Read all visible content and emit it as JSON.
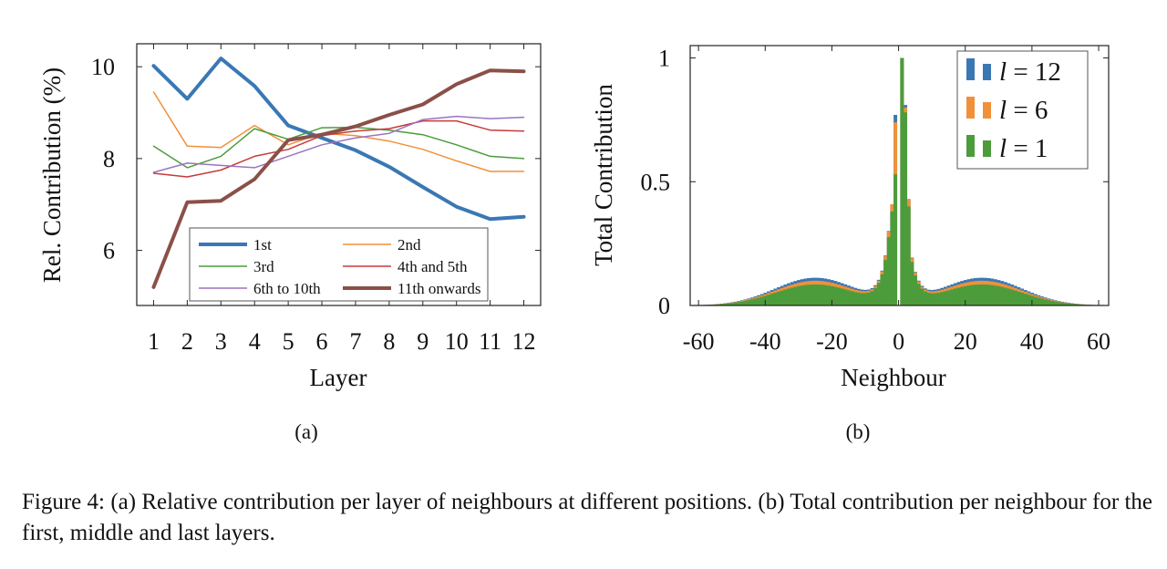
{
  "caption": {
    "label": "Figure 4:",
    "text": "(a) Relative contribution per layer of neighbours at different positions. (b) Total contribution per neighbour for the first, middle and last layers."
  },
  "chart_data": [
    {
      "type": "line",
      "panel_label": "(a)",
      "xlabel": "Layer",
      "ylabel": "Rel. Contribution (%)",
      "x": [
        1,
        2,
        3,
        4,
        5,
        6,
        7,
        8,
        9,
        10,
        11,
        12
      ],
      "xlim": [
        0.5,
        12.5
      ],
      "ylim": [
        4.8,
        10.5
      ],
      "yticks": [
        6,
        8,
        10
      ],
      "grid": false,
      "legend_position": "bottom, inside plot, two columns",
      "series": [
        {
          "name": "1st",
          "color": "#3a78b4",
          "width": 4,
          "values": [
            10.02,
            9.3,
            10.18,
            9.58,
            8.72,
            8.45,
            8.18,
            7.82,
            7.38,
            6.95,
            6.68,
            6.73
          ]
        },
        {
          "name": "2nd",
          "color": "#f0913a",
          "width": 1.5,
          "values": [
            9.45,
            8.27,
            8.24,
            8.72,
            8.3,
            8.55,
            8.5,
            8.38,
            8.2,
            7.95,
            7.72,
            7.72
          ]
        },
        {
          "name": "3rd",
          "color": "#4c9c3c",
          "width": 1.5,
          "values": [
            8.27,
            7.8,
            8.05,
            8.65,
            8.42,
            8.67,
            8.68,
            8.62,
            8.52,
            8.3,
            8.05,
            8.0
          ]
        },
        {
          "name": "4th and 5th",
          "color": "#c63b3b",
          "width": 1.5,
          "values": [
            7.68,
            7.6,
            7.75,
            8.05,
            8.2,
            8.5,
            8.6,
            8.65,
            8.82,
            8.82,
            8.62,
            8.6
          ]
        },
        {
          "name": "6th to 10th",
          "color": "#9a74c0",
          "width": 1.5,
          "values": [
            7.7,
            7.9,
            7.85,
            7.8,
            8.05,
            8.3,
            8.45,
            8.55,
            8.85,
            8.92,
            8.87,
            8.9
          ]
        },
        {
          "name": "11th onwards",
          "color": "#8a5048",
          "width": 4,
          "values": [
            5.2,
            7.05,
            7.08,
            7.55,
            8.4,
            8.52,
            8.7,
            8.95,
            9.18,
            9.62,
            9.92,
            9.9
          ]
        }
      ]
    },
    {
      "type": "bar",
      "panel_label": "(b)",
      "xlabel": "Neighbour",
      "ylabel": "Total Contribution",
      "xlim": [
        -62.5,
        63
      ],
      "ylim": [
        0,
        1.05
      ],
      "xticks": [
        -60,
        -40,
        -20,
        0,
        20,
        40,
        60
      ],
      "xtick_labels": [
        "-60",
        "-40",
        "-20",
        "0",
        "20",
        "40",
        "60"
      ],
      "yticks": [
        0,
        0.5,
        1
      ],
      "ytick_labels": [
        "0",
        "0.5",
        "1"
      ],
      "grid": false,
      "legend_position": "top-right",
      "bins": "one bar per neighbour offset from -61 to 61, overlaid (l = 12 behind, l = 1 in front)",
      "series": [
        {
          "name": "l = 12",
          "legend_l": "l",
          "legend_value": "12",
          "color": "#3a78b4",
          "profile": {
            "center": 1.0,
            "adjacent": [
              0.77,
              0.81
            ],
            "near_peak": 0.43,
            "shoulder_offset": 25,
            "shoulder_height": 0.112,
            "edge": 61
          }
        },
        {
          "name": "l = 6",
          "legend_l": "l",
          "legend_value": "6",
          "color": "#f0913a",
          "profile": {
            "center": 1.0,
            "adjacent": [
              0.74,
              0.8
            ],
            "near_peak": 0.43,
            "shoulder_offset": 25,
            "shoulder_height": 0.1,
            "edge": 61
          }
        },
        {
          "name": "l = 1",
          "legend_l": "l",
          "legend_value": "1",
          "color": "#4c9c3c",
          "profile": {
            "center": 1.0,
            "adjacent": [
              0.53,
              0.78
            ],
            "near_peak": 0.4,
            "shoulder_offset": 25,
            "shoulder_height": 0.085,
            "edge": 61
          }
        }
      ]
    }
  ]
}
